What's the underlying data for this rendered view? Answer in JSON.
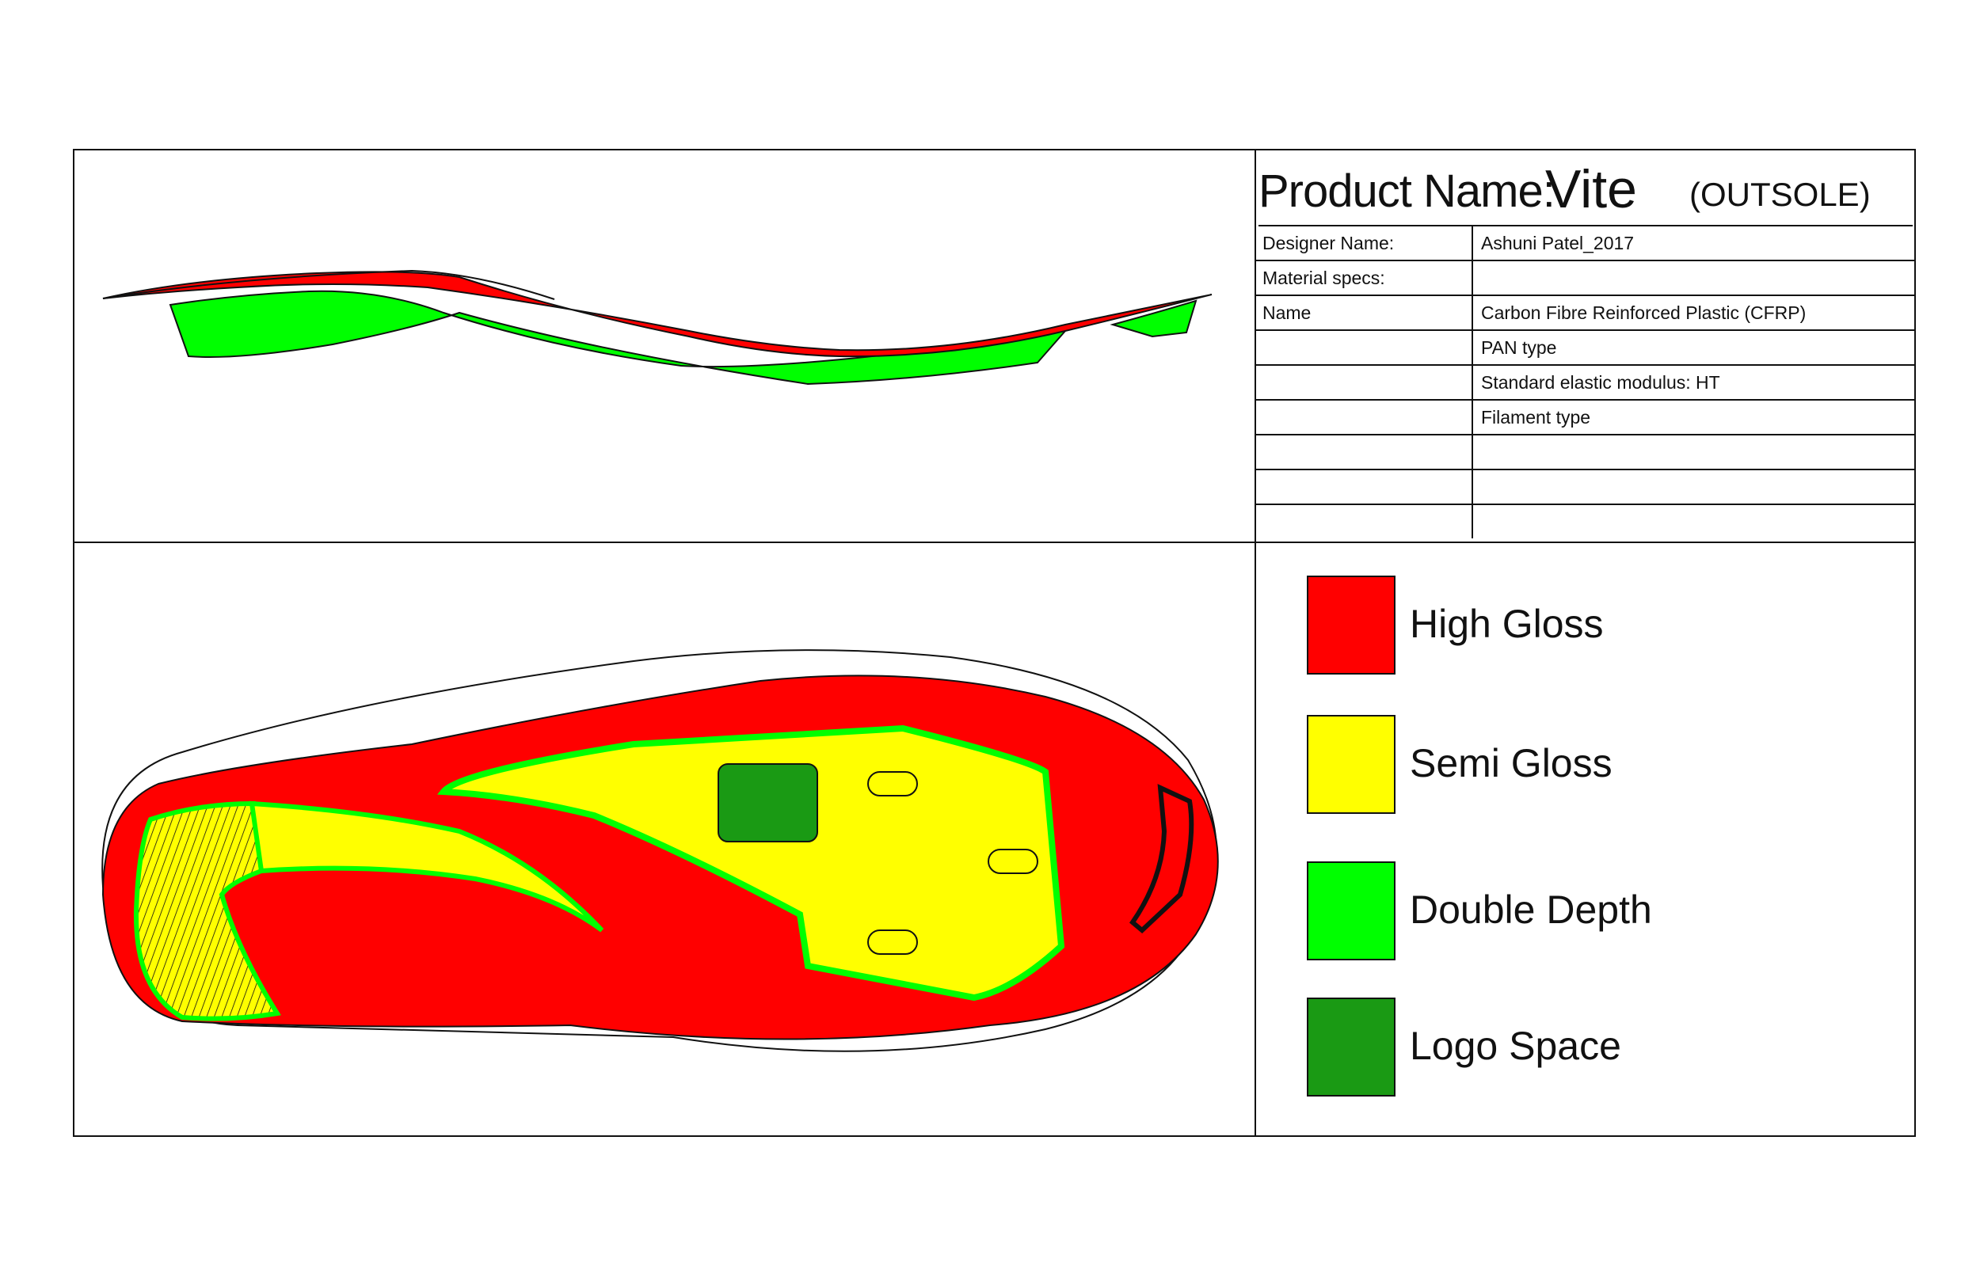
{
  "title": {
    "label": "Product Name:",
    "name": "Vite",
    "subtitle": "(OUTSOLE)"
  },
  "specs": [
    {
      "key": "Designer Name:",
      "value": "Ashuni Patel_2017"
    },
    {
      "key": "Material specs:",
      "value": ""
    },
    {
      "key": "Name",
      "value": "Carbon Fibre Reinforced Plastic (CFRP)"
    },
    {
      "key": "",
      "value": "PAN type"
    },
    {
      "key": "",
      "value": "Standard elastic modulus: HT"
    },
    {
      "key": "",
      "value": "Filament type"
    },
    {
      "key": "",
      "value": ""
    },
    {
      "key": "",
      "value": ""
    },
    {
      "key": "",
      "value": ""
    }
  ],
  "legend": [
    {
      "label": "High Gloss",
      "color": "#ff0000"
    },
    {
      "label": "Semi Gloss",
      "color": "#ffff00"
    },
    {
      "label": "Double Depth",
      "color": "#00ff00"
    },
    {
      "label": "Logo Space",
      "color": "#1a9a14"
    }
  ]
}
